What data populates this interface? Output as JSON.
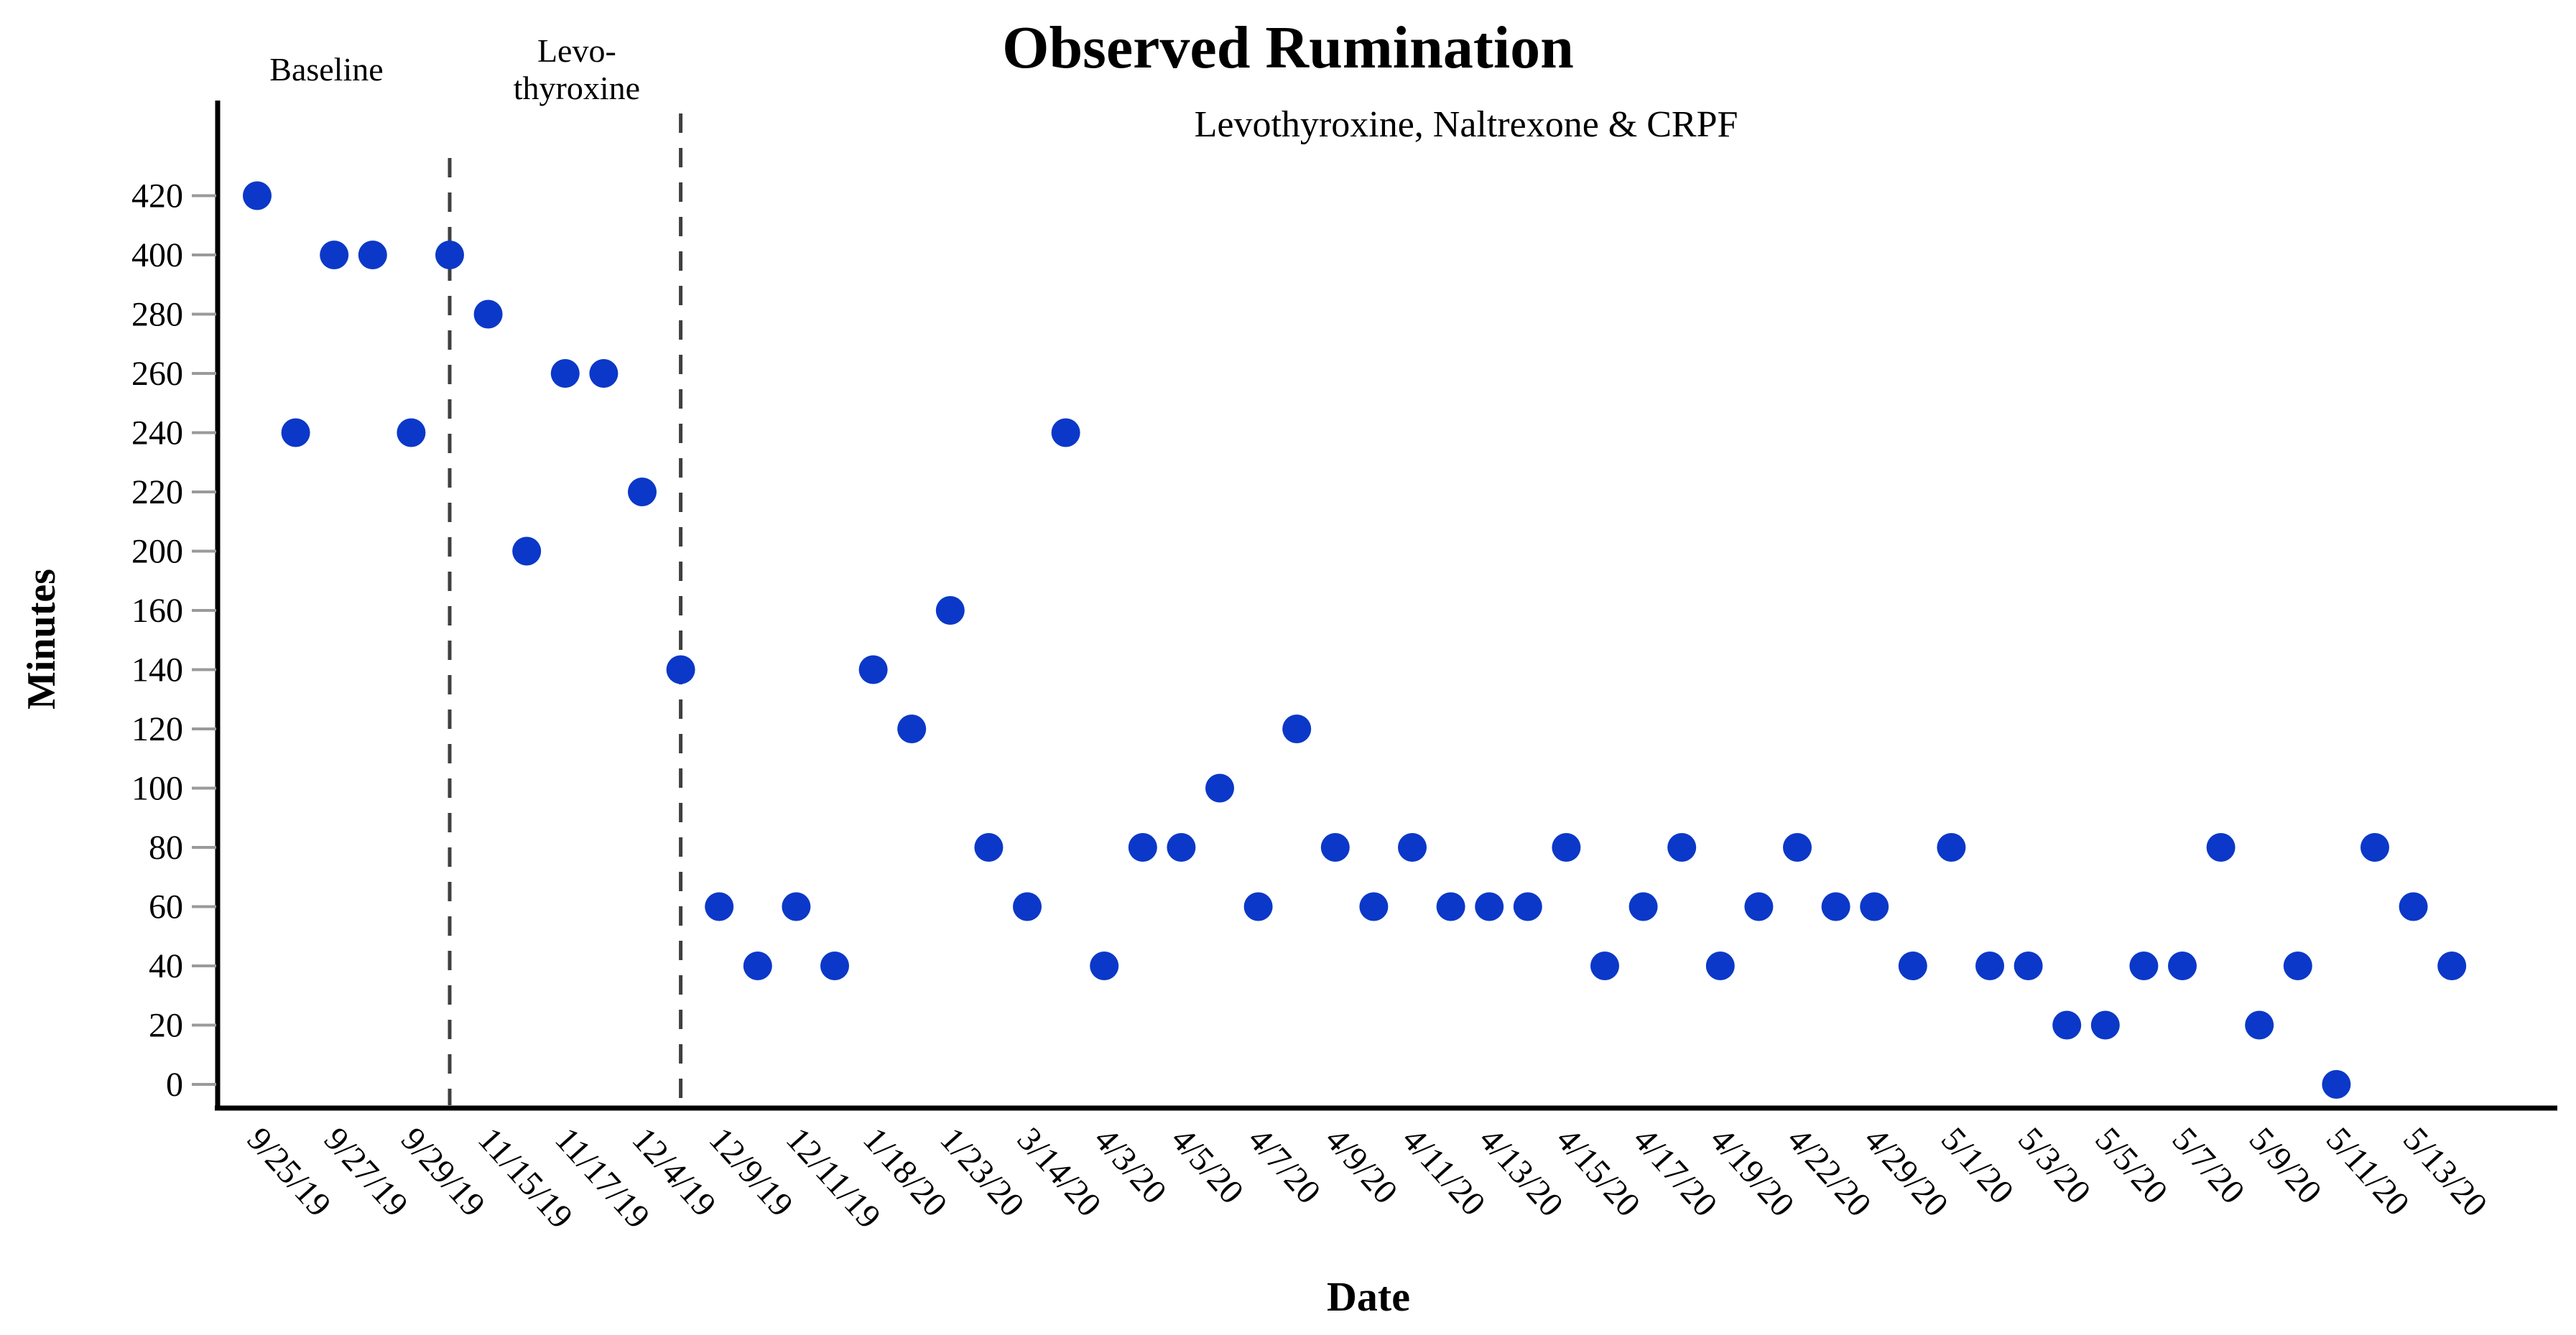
{
  "figure": {
    "title": "Observed Rumination",
    "x_axis_title": "Date",
    "y_axis_title": "Minutes"
  },
  "chart_data": {
    "type": "scatter",
    "title": "Observed Rumination",
    "xlabel": "Date",
    "ylabel": "Minutes",
    "grid": false,
    "legend": null,
    "point_color": "#0b38c8",
    "axis_color": "#000000",
    "divider_color": "#3f3f3f",
    "y_axis_type": "categorical-evenly-spaced-levels",
    "y_levels": [
      0,
      20,
      40,
      60,
      80,
      100,
      120,
      140,
      160,
      200,
      220,
      240,
      260,
      280,
      400,
      420
    ],
    "x_tick_labels": [
      "9/25/19",
      "9/27/19",
      "9/29/19",
      "11/15/19",
      "11/17/19",
      "12/4/19",
      "12/9/19",
      "12/11/19",
      "1/18/20",
      "1/23/20",
      "3/14/20",
      "4/3/20",
      "4/5/20",
      "4/7/20",
      "4/9/20",
      "4/11/20",
      "4/13/20",
      "4/15/20",
      "4/17/20",
      "4/19/20",
      "4/22/20",
      "4/29/20",
      "5/1/20",
      "5/3/20",
      "5/5/20",
      "5/7/20",
      "5/9/20",
      "5/11/20",
      "5/13/20"
    ],
    "x_label_every_n_points": 2,
    "values_minutes": [
      420,
      240,
      400,
      400,
      240,
      400,
      280,
      200,
      260,
      260,
      220,
      140,
      60,
      40,
      60,
      40,
      140,
      120,
      160,
      80,
      60,
      240,
      40,
      80,
      80,
      100,
      60,
      120,
      80,
      60,
      80,
      60,
      60,
      60,
      80,
      40,
      60,
      80,
      40,
      60,
      80,
      60,
      60,
      40,
      80,
      40,
      40,
      20,
      20,
      40,
      40,
      80,
      20,
      40,
      0,
      80,
      60,
      40
    ],
    "phase_dividers": [
      {
        "at_point_index": 5,
        "style": "dashed"
      },
      {
        "at_point_index": 11,
        "style": "dashed"
      }
    ],
    "phase_annotations": [
      {
        "lines": [
          "Baseline"
        ],
        "center_point_index": 1.8
      },
      {
        "lines": [
          "Levo-",
          "thyroxine"
        ],
        "center_point_index": 8.3
      },
      {
        "lines": [
          "Levothyroxine, Naltrexone & CRPF"
        ],
        "center_point_index": 31.4
      }
    ]
  }
}
